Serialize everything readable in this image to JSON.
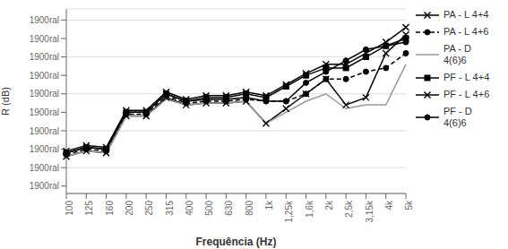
{
  "chart_data": {
    "type": "line",
    "xlabel": "Frequência (Hz)",
    "ylabel": "R (dB)",
    "categories": [
      "100",
      "125",
      "160",
      "200",
      "250",
      "315",
      "400",
      "500",
      "630",
      "800",
      "1k",
      "1,25k",
      "1,6k",
      "2k",
      "2,5k",
      "3,15k",
      "4k",
      "5k"
    ],
    "ylim": [
      3,
      53
    ],
    "yticks": [
      {
        "value": 5,
        "label": "1900ral"
      },
      {
        "value": 10,
        "label": "1900ral"
      },
      {
        "value": 15,
        "label": "1900ral"
      },
      {
        "value": 20,
        "label": "1900ral"
      },
      {
        "value": 25,
        "label": "1900ral"
      },
      {
        "value": 30,
        "label": "1900ral"
      },
      {
        "value": 35,
        "label": "1900ral"
      },
      {
        "value": 40,
        "label": "1900ral"
      },
      {
        "value": 45,
        "label": "1900ral"
      },
      {
        "value": 50,
        "label": "1900ral"
      }
    ],
    "grid": true,
    "legend": "right",
    "series": [
      {
        "name": "PA - L 4+4",
        "color": "#000000",
        "line_style": "solid",
        "marker": "x",
        "values": [
          13,
          14.5,
          14,
          24,
          24,
          29,
          27,
          27.5,
          27.5,
          28,
          22,
          26,
          30,
          34,
          27,
          29,
          41,
          46
        ]
      },
      {
        "name": "PA - L 4+6",
        "color": "#000000",
        "line_style": "dashed",
        "marker": "circle",
        "values": [
          13.5,
          15,
          14.5,
          24.5,
          24.5,
          29.5,
          27.5,
          28,
          28,
          28.5,
          28,
          28,
          30,
          34,
          34,
          36,
          37,
          41
        ]
      },
      {
        "name": "PA - D\n4(6)6",
        "color": "#999999",
        "line_style": "solid",
        "marker": "none",
        "values": [
          13,
          14.5,
          14,
          24,
          24,
          28.5,
          27,
          27.5,
          27.5,
          28,
          22,
          25,
          28,
          30,
          26,
          27,
          27,
          38
        ]
      },
      {
        "name": "PF - L 4+4",
        "color": "#000000",
        "line_style": "solid",
        "marker": "square",
        "values": [
          14,
          15.5,
          15,
          25,
          25,
          30,
          28,
          29,
          29,
          30,
          29,
          32,
          35,
          37,
          37,
          40,
          43,
          45
        ]
      },
      {
        "name": "PF - L 4+6",
        "color": "#000000",
        "line_style": "solid",
        "marker": "x",
        "values": [
          14.5,
          16,
          15.5,
          25.5,
          25.5,
          30.5,
          28.5,
          29.5,
          29.5,
          30.5,
          29.5,
          32.5,
          35.5,
          38,
          38,
          41,
          44,
          48
        ]
      },
      {
        "name": "PF - D\n4(6)6",
        "color": "#000000",
        "line_style": "solid",
        "marker": "circle",
        "values": [
          14,
          15.5,
          15,
          25,
          25,
          30,
          28,
          28.5,
          28.5,
          29,
          28,
          28,
          33,
          36,
          39,
          42,
          43,
          44
        ]
      }
    ]
  }
}
